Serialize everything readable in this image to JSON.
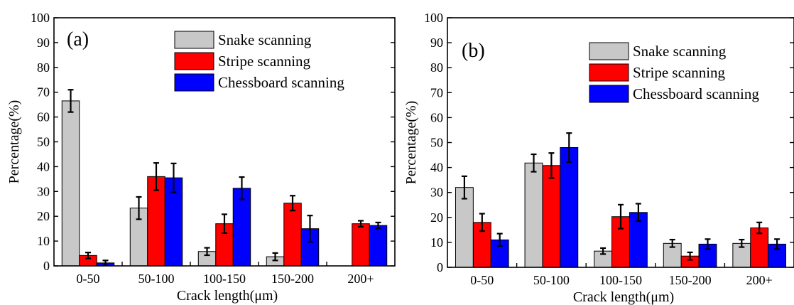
{
  "colors": {
    "snake": "#c8c8c8",
    "stripe": "#ff0000",
    "chessboard": "#0000ff",
    "errorbar": "#000000",
    "axis": "#000000"
  },
  "chart_data": [
    {
      "type": "bar",
      "panel_label": "(a)",
      "xlabel": "Crack length(μm)",
      "ylabel": "Percentage(%)",
      "ylim": [
        0,
        100
      ],
      "yticks": [
        0,
        10,
        20,
        30,
        40,
        50,
        60,
        70,
        80,
        90,
        100
      ],
      "grid": false,
      "legend_position": "top-right",
      "categories": [
        "0-50",
        "50-100",
        "100-150",
        "150-200",
        "200+"
      ],
      "series": [
        {
          "name": "Snake scanning",
          "color_key": "snake",
          "values": [
            66.5,
            23.3,
            5.8,
            3.7,
            0
          ],
          "errors": [
            4.5,
            4.5,
            1.5,
            1.5,
            0
          ]
        },
        {
          "name": "Stripe scanning",
          "color_key": "stripe",
          "values": [
            4.2,
            36.0,
            17.0,
            25.3,
            17.0
          ],
          "errors": [
            1.2,
            5.5,
            3.8,
            3.0,
            1.2
          ]
        },
        {
          "name": "Chessboard scanning",
          "color_key": "chessboard",
          "values": [
            1.2,
            35.5,
            31.3,
            15.0,
            16.3
          ],
          "errors": [
            1.0,
            5.8,
            4.5,
            5.3,
            1.2
          ]
        }
      ]
    },
    {
      "type": "bar",
      "panel_label": "(b)",
      "xlabel": "Crack length(μm)",
      "ylabel": "Percentage(%)",
      "ylim": [
        0,
        100
      ],
      "yticks": [
        0,
        10,
        20,
        30,
        40,
        50,
        60,
        70,
        80,
        90,
        100
      ],
      "grid": false,
      "legend_position": "top-right",
      "categories": [
        "0-50",
        "50-100",
        "100-150",
        "150-200",
        "200+"
      ],
      "series": [
        {
          "name": "Snake scanning",
          "color_key": "snake",
          "values": [
            32.0,
            41.8,
            6.5,
            9.6,
            9.6
          ],
          "errors": [
            4.5,
            3.5,
            1.2,
            1.5,
            1.5
          ]
        },
        {
          "name": "Stripe scanning",
          "color_key": "stripe",
          "values": [
            18.0,
            40.8,
            20.3,
            4.5,
            15.8
          ],
          "errors": [
            3.5,
            5.0,
            4.8,
            1.5,
            2.2
          ]
        },
        {
          "name": "Chessboard scanning",
          "color_key": "chessboard",
          "values": [
            11.0,
            48.0,
            22.0,
            9.3,
            9.3
          ],
          "errors": [
            2.5,
            5.8,
            3.5,
            2.0,
            2.0
          ]
        }
      ]
    }
  ]
}
